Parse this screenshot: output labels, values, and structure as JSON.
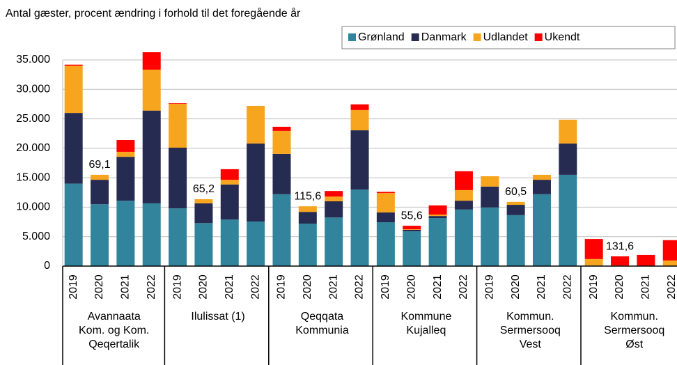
{
  "chart_data": {
    "type": "bar",
    "stacked": true,
    "title": "Antal gæster, procent ændring i forhold til det foregående år",
    "categories": [
      "2019",
      "2020",
      "2021",
      "2022",
      "2019",
      "2020",
      "2021",
      "2022",
      "2019",
      "2020",
      "2021",
      "2022",
      "2019",
      "2020",
      "2021",
      "2022",
      "2019",
      "2020",
      "2021",
      "2022",
      "2019",
      "2020",
      "2021",
      "2022"
    ],
    "groups": [
      [
        "Avannaata",
        "Kom. og Kom.",
        "Qeqertalik"
      ],
      [
        "Ilulissat (1)"
      ],
      [
        "Qeqqata",
        "Kommunia"
      ],
      [
        "Kommune",
        "Kujalleq"
      ],
      [
        "Kommun.",
        "Sermersooq",
        "Vest"
      ],
      [
        "Kommun.",
        "Sermersooq",
        "Øst"
      ]
    ],
    "annotations": [
      "69,1",
      "65,2",
      "115,6",
      "55,6",
      "60,5",
      "131,6"
    ],
    "series": [
      {
        "name": "Grønland",
        "color": "#31849b",
        "values": [
          14000,
          10500,
          11100,
          10650,
          9800,
          7300,
          7900,
          7550,
          12200,
          7200,
          8250,
          13000,
          7450,
          5900,
          8150,
          9600,
          9950,
          8650,
          12200,
          15500,
          100,
          0,
          0,
          0
        ]
      },
      {
        "name": "Danmark",
        "color": "#262b52",
        "values": [
          12000,
          4150,
          7450,
          15750,
          10300,
          3350,
          5950,
          13250,
          6850,
          2000,
          2750,
          10050,
          1650,
          250,
          350,
          1500,
          3550,
          1750,
          2450,
          5300,
          0,
          0,
          0,
          0
        ]
      },
      {
        "name": "Udlandet",
        "color": "#f7a51e",
        "values": [
          8000,
          850,
          850,
          6950,
          7450,
          700,
          800,
          6400,
          3900,
          950,
          800,
          3450,
          3300,
          100,
          250,
          1800,
          1750,
          500,
          850,
          4050,
          1100,
          100,
          0,
          950
        ]
      },
      {
        "name": "Ukendt",
        "color": "#ff0000",
        "values": [
          200,
          0,
          2000,
          2950,
          100,
          0,
          1800,
          0,
          700,
          0,
          950,
          950,
          200,
          600,
          1550,
          3200,
          0,
          0,
          0,
          0,
          3400,
          1550,
          1900,
          3450
        ]
      }
    ],
    "ylim": [
      0,
      35000
    ],
    "yticks": [
      0,
      {
        "value": 5000,
        "label": "5.000"
      },
      {
        "value": 10000,
        "label": "10.000"
      },
      {
        "value": 15000,
        "label": "15.000"
      },
      {
        "value": 20000,
        "label": "20.000"
      },
      {
        "value": 25000,
        "label": "25.000"
      },
      {
        "value": 30000,
        "label": "30.000"
      },
      {
        "value": 35000,
        "label": "35.000"
      }
    ],
    "grid": true,
    "legend": "top-right"
  }
}
